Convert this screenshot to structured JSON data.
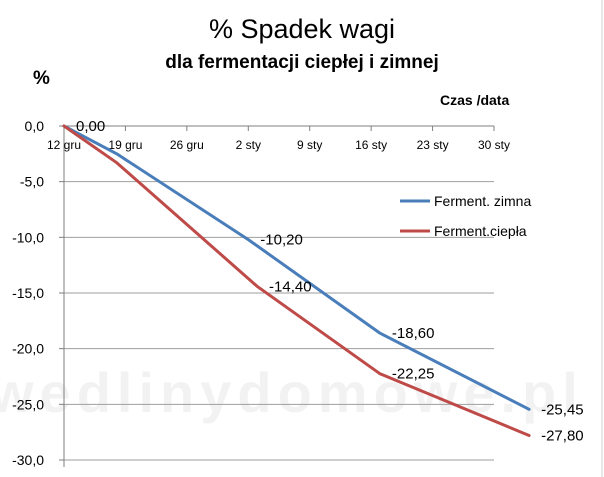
{
  "chart_data": {
    "type": "line",
    "title": "% Spadek wagi",
    "subtitle": "dla fermentacji ciepłej i zimnej",
    "ylabel": "%",
    "xlabel": "Czas /data",
    "ylim": [
      -30,
      0
    ],
    "y_ticks": [
      "0,0",
      "-5,0",
      "-10,0",
      "-15,0",
      "-20,0",
      "-25,0",
      "-30,0"
    ],
    "x_ticks": [
      "12 gru",
      "19 gru",
      "26 gru",
      "2 sty",
      "9 sty",
      "16 sty",
      "23 sty",
      "30 sty"
    ],
    "x_range_days": [
      0,
      49
    ],
    "grid": "horizontal",
    "legend_position": "right",
    "series": [
      {
        "name": "Ferment. zimna",
        "color": "#4a7ebb",
        "x": [
          0,
          6,
          21,
          36,
          53
        ],
        "y": [
          0,
          -2.5,
          -10.2,
          -18.6,
          -25.45
        ],
        "labels": [
          "0,00",
          "",
          "-10,20",
          "-18,60",
          "-25,45"
        ]
      },
      {
        "name": "Ferment.ciepła",
        "color": "#be4b48",
        "x": [
          0,
          6,
          22,
          36,
          53
        ],
        "y": [
          0,
          -3.3,
          -14.4,
          -22.25,
          -27.8
        ],
        "labels": [
          "",
          "",
          "-14,40",
          "-22,25",
          "-27,80"
        ]
      }
    ]
  },
  "watermark": "wedlinydomowe.pl"
}
